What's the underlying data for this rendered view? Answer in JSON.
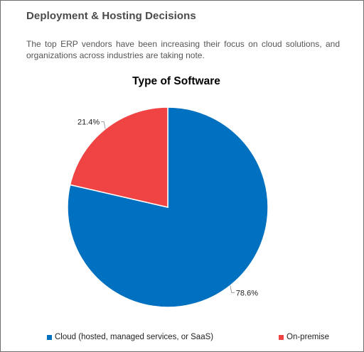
{
  "section": {
    "title": "Deployment & Hosting Decisions",
    "intro": "The top ERP vendors have been increasing their focus on cloud solutions, and organizations across industries are taking note."
  },
  "colors": {
    "cloud": "#0070c0",
    "on_premise": "#f04444"
  },
  "chart_data": {
    "type": "pie",
    "title": "Type of Software",
    "categories": [
      "Cloud (hosted, managed services, or SaaS)",
      "On-premise"
    ],
    "values": [
      78.6,
      21.4
    ],
    "data_labels": [
      "78.6%",
      "21.4%"
    ],
    "legend_position": "bottom",
    "start_angle_deg": 0,
    "direction": "clockwise"
  }
}
